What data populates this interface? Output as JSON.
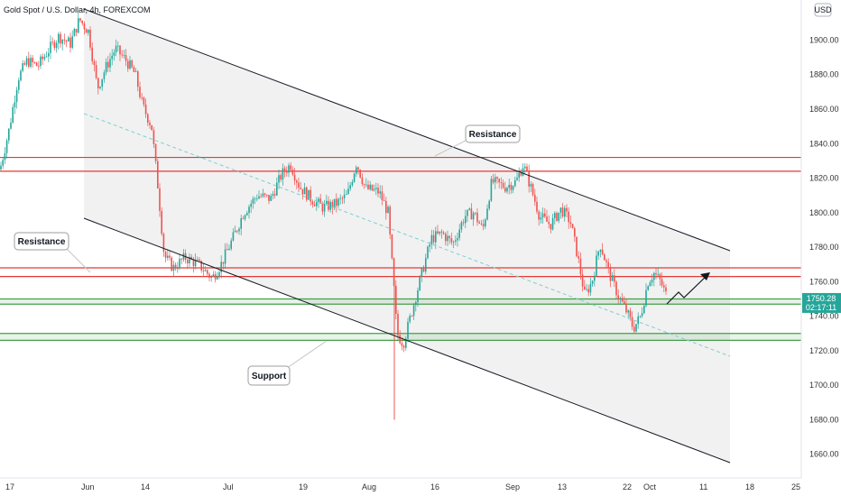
{
  "chart_data": {
    "type": "candlestick",
    "title": "Gold Spot / U.S. Dollar, 4h, FOREXCOM",
    "currency": "USD",
    "x_tick_labels": [
      "17",
      "Jun",
      "14",
      "Jul",
      "19",
      "Aug",
      "16",
      "Sep",
      "13",
      "22",
      "Oct",
      "11",
      "18",
      "25"
    ],
    "y_ticks": [
      1660,
      1680,
      1700,
      1720,
      1740,
      1760,
      1780,
      1800,
      1820,
      1840,
      1860,
      1880,
      1900
    ],
    "ylim": [
      1652,
      1918
    ],
    "last_price": "1750.28",
    "countdown": "02:17:11",
    "colors": {
      "up": "#26a69a",
      "down": "#ef5350",
      "resistance": "#e53935",
      "support": "#43a047",
      "channel": "#131722",
      "midline": "#7fcfd0"
    },
    "resistance_levels": [
      1832,
      1824,
      1768,
      1763
    ],
    "support_levels": [
      1750,
      1747,
      1730,
      1726
    ],
    "annotations": [
      "Resistance",
      "Resistance",
      "Support"
    ],
    "price_path": [
      {
        "x": 0,
        "y": 1825
      },
      {
        "x": 10,
        "y": 1848
      },
      {
        "x": 20,
        "y": 1878
      },
      {
        "x": 30,
        "y": 1888
      },
      {
        "x": 42,
        "y": 1885
      },
      {
        "x": 55,
        "y": 1895
      },
      {
        "x": 65,
        "y": 1902
      },
      {
        "x": 78,
        "y": 1898
      },
      {
        "x": 88,
        "y": 1912
      },
      {
        "x": 98,
        "y": 1905
      },
      {
        "x": 108,
        "y": 1872
      },
      {
        "x": 118,
        "y": 1885
      },
      {
        "x": 128,
        "y": 1895
      },
      {
        "x": 140,
        "y": 1888
      },
      {
        "x": 150,
        "y": 1880
      },
      {
        "x": 158,
        "y": 1862
      },
      {
        "x": 168,
        "y": 1850
      },
      {
        "x": 175,
        "y": 1815
      },
      {
        "x": 182,
        "y": 1775
      },
      {
        "x": 192,
        "y": 1768
      },
      {
        "x": 205,
        "y": 1774
      },
      {
        "x": 220,
        "y": 1770
      },
      {
        "x": 235,
        "y": 1762
      },
      {
        "x": 245,
        "y": 1770
      },
      {
        "x": 258,
        "y": 1785
      },
      {
        "x": 270,
        "y": 1800
      },
      {
        "x": 285,
        "y": 1810
      },
      {
        "x": 300,
        "y": 1808
      },
      {
        "x": 312,
        "y": 1822
      },
      {
        "x": 322,
        "y": 1828
      },
      {
        "x": 332,
        "y": 1815
      },
      {
        "x": 345,
        "y": 1808
      },
      {
        "x": 358,
        "y": 1803
      },
      {
        "x": 372,
        "y": 1805
      },
      {
        "x": 385,
        "y": 1810
      },
      {
        "x": 395,
        "y": 1829
      },
      {
        "x": 405,
        "y": 1814
      },
      {
        "x": 420,
        "y": 1812
      },
      {
        "x": 430,
        "y": 1800
      },
      {
        "x": 436,
        "y": 1760
      },
      {
        "x": 440,
        "y": 1730
      },
      {
        "x": 447,
        "y": 1724
      },
      {
        "x": 455,
        "y": 1740
      },
      {
        "x": 465,
        "y": 1760
      },
      {
        "x": 478,
        "y": 1785
      },
      {
        "x": 490,
        "y": 1788
      },
      {
        "x": 502,
        "y": 1782
      },
      {
        "x": 515,
        "y": 1798
      },
      {
        "x": 525,
        "y": 1800
      },
      {
        "x": 535,
        "y": 1790
      },
      {
        "x": 545,
        "y": 1818
      },
      {
        "x": 560,
        "y": 1815
      },
      {
        "x": 572,
        "y": 1818
      },
      {
        "x": 580,
        "y": 1828
      },
      {
        "x": 588,
        "y": 1815
      },
      {
        "x": 598,
        "y": 1798
      },
      {
        "x": 610,
        "y": 1793
      },
      {
        "x": 622,
        "y": 1802
      },
      {
        "x": 632,
        "y": 1795
      },
      {
        "x": 640,
        "y": 1775
      },
      {
        "x": 648,
        "y": 1752
      },
      {
        "x": 656,
        "y": 1760
      },
      {
        "x": 665,
        "y": 1782
      },
      {
        "x": 675,
        "y": 1765
      },
      {
        "x": 685,
        "y": 1752
      },
      {
        "x": 695,
        "y": 1742
      },
      {
        "x": 702,
        "y": 1733
      },
      {
        "x": 710,
        "y": 1740
      },
      {
        "x": 718,
        "y": 1760
      },
      {
        "x": 725,
        "y": 1765
      },
      {
        "x": 732,
        "y": 1760
      },
      {
        "x": 740,
        "y": 1750
      }
    ]
  }
}
